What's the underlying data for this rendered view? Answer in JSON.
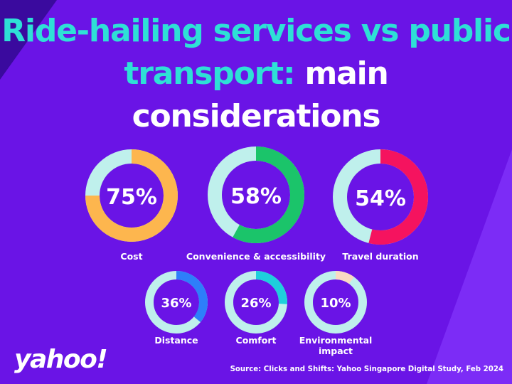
{
  "title": {
    "part1": "Ride-hailing services vs public transport:",
    "part2": "main considerations"
  },
  "chart_data": {
    "type": "donut",
    "title": "Ride-hailing services vs public transport: main considerations",
    "unit": "%",
    "categories": [
      "Cost",
      "Convenience & accessibility",
      "Travel duration",
      "Distance",
      "Comfort",
      "Environmental impact"
    ],
    "values": [
      75,
      58,
      54,
      36,
      26,
      10
    ],
    "labels": [
      "75%",
      "58%",
      "54%",
      "36%",
      "26%",
      "10%"
    ],
    "colors": [
      "#fdb64e",
      "#1bc46a",
      "#f5135f",
      "#2d7ffa",
      "#1ecfdc",
      "#f9d9c3"
    ],
    "track_color": "#bff0ec"
  },
  "footer": {
    "logo": "yahoo!",
    "source": "Source: Clicks and Shifts: Yahoo Singapore Digital Study, Feb 2024"
  }
}
